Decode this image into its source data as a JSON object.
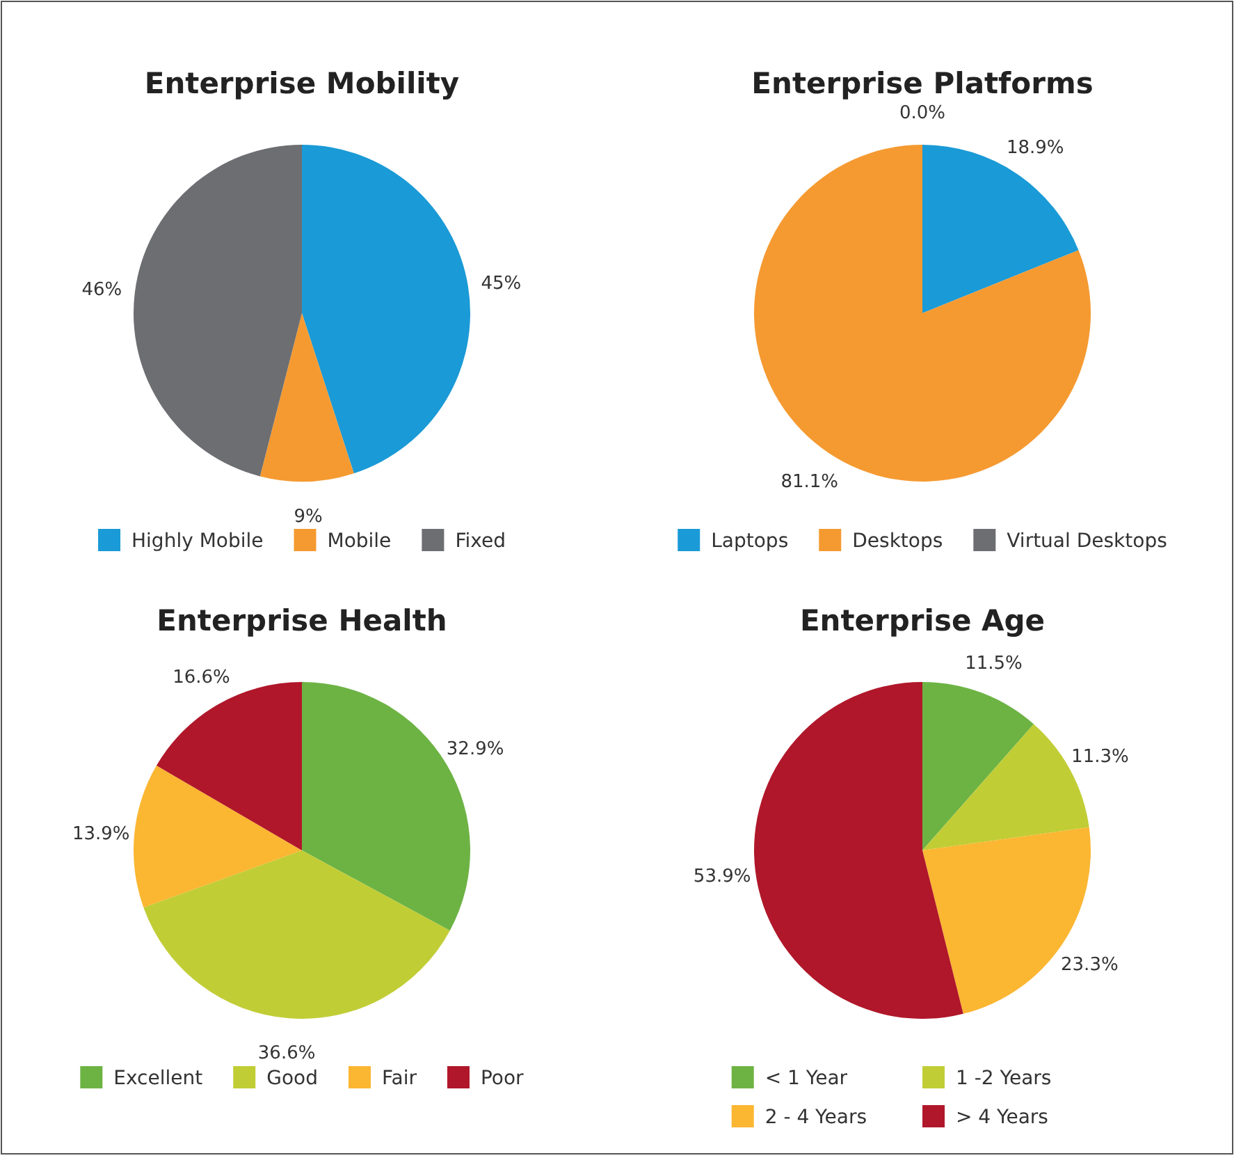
{
  "chart_data": [
    {
      "type": "pie",
      "title": "Enterprise Mobility",
      "categories": [
        "Highly Mobile",
        "Mobile",
        "Fixed"
      ],
      "values": [
        45,
        9,
        46
      ],
      "value_labels": [
        "45%",
        "9%",
        "46%"
      ],
      "colors": [
        "#1a9ad6",
        "#f59a31",
        "#6d6e71"
      ],
      "legend": "bottom"
    },
    {
      "type": "pie",
      "title": "Enterprise Platforms",
      "categories": [
        "Laptops",
        "Desktops",
        "Virtual Desktops"
      ],
      "values": [
        18.9,
        81.1,
        0.0
      ],
      "value_labels": [
        "18.9%",
        "81.1%",
        "0.0%"
      ],
      "colors": [
        "#1a9ad6",
        "#f59a31",
        "#6d6e71"
      ],
      "legend": "bottom"
    },
    {
      "type": "pie",
      "title": "Enterprise Health",
      "categories": [
        "Excellent",
        "Good",
        "Fair",
        "Poor"
      ],
      "values": [
        32.9,
        36.6,
        13.9,
        16.6
      ],
      "value_labels": [
        "32.9%",
        "36.6%",
        "13.9%",
        "16.6%"
      ],
      "colors": [
        "#6db344",
        "#c1cd35",
        "#fbb632",
        "#b0172a"
      ],
      "legend": "bottom"
    },
    {
      "type": "pie",
      "title": "Enterprise Age",
      "categories": [
        "< 1 Year",
        "1 -2 Years",
        "2 - 4 Years",
        "> 4 Years"
      ],
      "values": [
        11.5,
        11.3,
        23.3,
        53.9
      ],
      "value_labels": [
        "11.5%",
        "11.3%",
        "23.3%",
        "53.9%"
      ],
      "colors": [
        "#6db344",
        "#c1cd35",
        "#fbb632",
        "#b0172a"
      ],
      "legend": "bottom"
    }
  ]
}
